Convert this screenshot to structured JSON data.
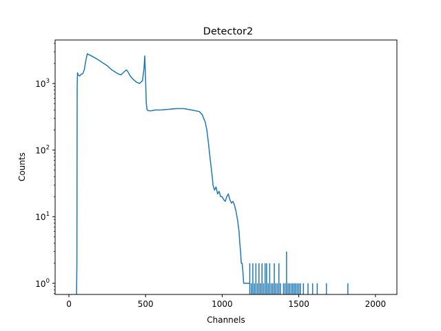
{
  "chart_data": {
    "type": "line",
    "title": "Detector2",
    "xlabel": "Channels",
    "ylabel": "Counts",
    "xlim": [
      -90,
      2140
    ],
    "ylim": [
      0.68,
      4500
    ],
    "yscale": "log",
    "grid": false,
    "x_ticks": [
      0,
      500,
      1000,
      1500,
      2000
    ],
    "y_ticks": [
      {
        "value": 1,
        "label": "10",
        "exp": "0"
      },
      {
        "value": 10,
        "label": "10",
        "exp": "1"
      },
      {
        "value": 100,
        "label": "10",
        "exp": "2"
      },
      {
        "value": 1000,
        "label": "10",
        "exp": "3"
      }
    ],
    "series": [
      {
        "color": "#1f77b4",
        "x": [
          50,
          52,
          54,
          56,
          60,
          70,
          80,
          90,
          100,
          110,
          120,
          130,
          140,
          160,
          180,
          200,
          220,
          250,
          280,
          300,
          320,
          340,
          360,
          375,
          385,
          400,
          420,
          440,
          460,
          480,
          490,
          495,
          500,
          505,
          510,
          520,
          540,
          560,
          600,
          650,
          700,
          750,
          800,
          850,
          870,
          890,
          900,
          910,
          920,
          930,
          935,
          940,
          950,
          960,
          970,
          980,
          990,
          1000,
          1010,
          1020,
          1030,
          1040,
          1050,
          1060,
          1070,
          1080,
          1090,
          1100,
          1110,
          1115,
          1120,
          1125,
          1130,
          1135,
          1140,
          1150,
          1160,
          1170,
          1180
        ],
        "y": [
          0.68,
          2,
          900,
          1450,
          1350,
          1300,
          1380,
          1400,
          1600,
          2200,
          2800,
          2700,
          2650,
          2500,
          2350,
          2200,
          2050,
          1850,
          1600,
          1500,
          1400,
          1350,
          1500,
          1600,
          1500,
          1300,
          1150,
          1050,
          1000,
          1100,
          1700,
          2600,
          1200,
          500,
          400,
          390,
          390,
          400,
          400,
          410,
          420,
          420,
          400,
          380,
          340,
          260,
          200,
          130,
          80,
          50,
          40,
          30,
          25,
          28,
          22,
          24,
          20,
          20,
          18,
          17,
          20,
          22,
          18,
          16,
          17,
          15,
          12,
          9,
          6,
          4,
          3,
          2,
          2,
          1.5,
          1,
          1,
          1,
          1,
          1
        ]
      }
    ],
    "sparse_points": {
      "x": [
        1180,
        1190,
        1200,
        1210,
        1220,
        1230,
        1240,
        1250,
        1260,
        1270,
        1280,
        1290,
        1300,
        1310,
        1320,
        1330,
        1340,
        1350,
        1360,
        1370,
        1380,
        1400,
        1410,
        1420,
        1430,
        1440,
        1450,
        1460,
        1470,
        1480,
        1490,
        1500,
        1510,
        1530,
        1560,
        1590,
        1620,
        1680,
        1820
      ],
      "y": [
        2,
        1,
        2,
        1,
        2,
        1,
        2,
        1,
        2,
        1,
        2,
        2,
        1,
        2,
        1,
        1,
        2,
        1,
        1,
        2,
        1,
        1,
        1,
        3,
        1,
        1,
        1,
        1,
        1,
        1,
        1,
        1,
        1,
        1,
        1,
        1,
        1,
        1,
        1
      ]
    }
  }
}
